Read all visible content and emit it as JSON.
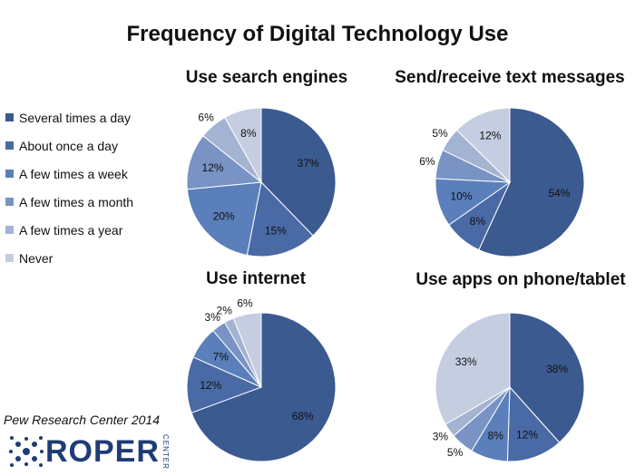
{
  "title": "Frequency of Digital Technology Use",
  "legend": [
    {
      "label": "Several times a day",
      "color": "#3b5a90"
    },
    {
      "label": "About once a day",
      "color": "#4a6aa6"
    },
    {
      "label": "A few times a week",
      "color": "#5a7fba"
    },
    {
      "label": "A few times a month",
      "color": "#7893c4"
    },
    {
      "label": "A few times a year",
      "color": "#a3b3d2"
    },
    {
      "label": "Never",
      "color": "#c5cde0"
    }
  ],
  "source": "Pew Research Center 2014",
  "logo": {
    "text": "ROPER",
    "sub": "CENTER"
  },
  "chart_data": [
    {
      "type": "pie",
      "title": "Use search engines",
      "categories": [
        "Several times a day",
        "About once a day",
        "A few times a week",
        "A few times a month",
        "A few times a year",
        "Never"
      ],
      "values": [
        37,
        15,
        20,
        12,
        6,
        8
      ],
      "labels": [
        "37%",
        "15%",
        "20%",
        "12%",
        "6%",
        "8%"
      ]
    },
    {
      "type": "pie",
      "title": "Send/receive text messages",
      "categories": [
        "Several times a day",
        "About once a day",
        "A few times a week",
        "A few times a month",
        "A few times a year",
        "Never"
      ],
      "values": [
        54,
        8,
        10,
        6,
        5,
        12
      ],
      "labels": [
        "54%",
        "8%",
        "10%",
        "6%",
        "5%",
        "12%"
      ]
    },
    {
      "type": "pie",
      "title": "Use internet",
      "categories": [
        "Several times a day",
        "About once a day",
        "A few times a week",
        "A few times a month",
        "A few times a year",
        "Never"
      ],
      "values": [
        68,
        12,
        7,
        3,
        2,
        6
      ],
      "labels": [
        "68%",
        "12%",
        "7%",
        "3%",
        "2%",
        "6%"
      ]
    },
    {
      "type": "pie",
      "title": "Use apps on phone/tablet",
      "categories": [
        "Several times a day",
        "About once a day",
        "A few times a week",
        "A few times a month",
        "A few times a year",
        "Never"
      ],
      "values": [
        38,
        12,
        8,
        5,
        3,
        33
      ],
      "labels": [
        "38%",
        "12%",
        "8%",
        "5%",
        "3%",
        "33%"
      ]
    }
  ]
}
